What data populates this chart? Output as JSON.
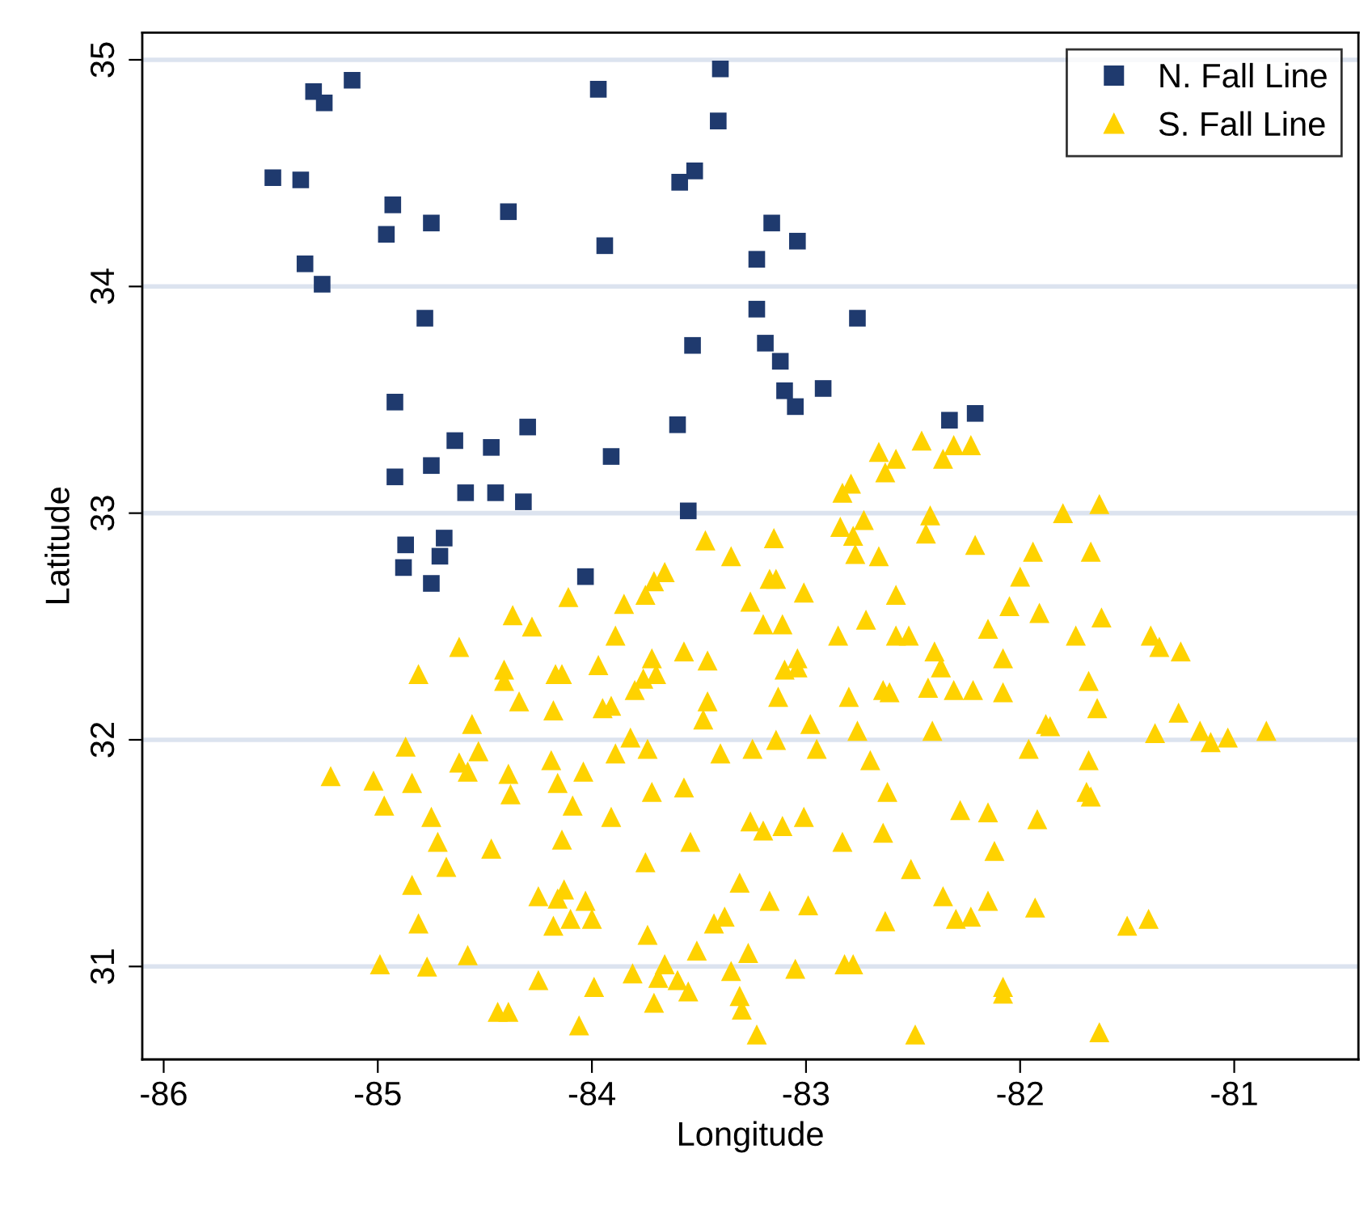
{
  "chart_data": {
    "type": "scatter",
    "xlabel": "Longitude",
    "ylabel": "Latitude",
    "xlim": [
      -86.1,
      -80.42
    ],
    "ylim": [
      30.59,
      35.12
    ],
    "xticks": [
      -86,
      -85,
      -84,
      -83,
      -82,
      -81
    ],
    "yticks": [
      31,
      32,
      33,
      34,
      35
    ],
    "grid": "y",
    "legend": "top right",
    "series": [
      {
        "name": "N. Fall Line",
        "color": "#1f3a6e",
        "marker": "square",
        "x": [
          -83.4,
          -83.97,
          -85.12,
          -85.3,
          -85.25,
          -83.41,
          -85.49,
          -85.36,
          -83.52,
          -83.59,
          -84.93,
          -84.96,
          -84.75,
          -84.39,
          -83.94,
          -83.23,
          -85.34,
          -85.26,
          -84.78,
          -83.53,
          -83.23,
          -84.92,
          -83.6,
          -84.3,
          -84.64,
          -84.47,
          -83.91,
          -84.92,
          -84.75,
          -84.59,
          -84.45,
          -84.32,
          -83.55,
          -84.87,
          -84.69,
          -84.88,
          -84.71,
          -84.75,
          -84.03,
          -83.16,
          -83.04,
          -82.76,
          -83.19,
          -83.12,
          -83.1,
          -83.05,
          -82.92,
          -82.33,
          -82.21
        ],
        "values": [
          34.96,
          34.87,
          34.91,
          34.86,
          34.81,
          34.73,
          34.48,
          34.47,
          34.51,
          34.46,
          34.36,
          34.23,
          34.28,
          34.33,
          34.18,
          34.12,
          34.1,
          34.01,
          33.86,
          33.74,
          33.9,
          33.49,
          33.39,
          33.38,
          33.32,
          33.29,
          33.25,
          33.16,
          33.21,
          33.09,
          33.09,
          33.05,
          33.01,
          32.86,
          32.89,
          32.76,
          32.81,
          32.69,
          32.72,
          34.28,
          34.2,
          33.86,
          33.75,
          33.67,
          33.54,
          33.47,
          33.55,
          33.41,
          33.44
        ]
      },
      {
        "name": "S. Fall Line",
        "color": "#ffd200",
        "marker": "triangle",
        "x": [
          -83.47,
          -83.35,
          -83.66,
          -83.71,
          -83.75,
          -84.11,
          -83.85,
          -84.37,
          -84.28,
          -83.26,
          -83.89,
          -84.62,
          -83.57,
          -83.46,
          -83.72,
          -84.81,
          -84.41,
          -84.41,
          -84.14,
          -84.17,
          -83.97,
          -83.7,
          -83.76,
          -83.8,
          -84.34,
          -84.18,
          -83.95,
          -83.91,
          -83.46,
          -83.48,
          -84.56,
          -83.82,
          -84.87,
          -84.53,
          -84.62,
          -84.58,
          -84.19,
          -83.89,
          -83.74,
          -83.4,
          -83.25,
          -85.22,
          -85.02,
          -84.84,
          -84.39,
          -84.38,
          -84.16,
          -84.04,
          -83.72,
          -83.57,
          -84.97,
          -84.75,
          -84.09,
          -83.91,
          -83.26,
          -84.72,
          -84.47,
          -84.14,
          -83.54,
          -84.68,
          -83.75,
          -84.84,
          -83.31,
          -84.25,
          -84.13,
          -84.16,
          -84.03,
          -84.18,
          -84.1,
          -84.0,
          -84.81,
          -83.74,
          -83.43,
          -83.38,
          -83.51,
          -84.99,
          -84.77,
          -84.58,
          -83.81,
          -83.66,
          -83.69,
          -83.6,
          -83.55,
          -83.35,
          -83.27,
          -84.25,
          -83.99,
          -83.71,
          -83.31,
          -83.3,
          -84.44,
          -84.39,
          -84.06,
          -83.23,
          -82.46,
          -82.66,
          -82.58,
          -82.31,
          -82.23,
          -82.36,
          -82.63,
          -82.79,
          -82.83,
          -81.63,
          -81.8,
          -82.42,
          -82.73,
          -82.84,
          -82.78,
          -82.44,
          -82.77,
          -82.66,
          -82.21,
          -81.94,
          -81.67,
          -83.15,
          -82.0,
          -83.17,
          -83.14,
          -83.01,
          -82.58,
          -82.05,
          -81.91,
          -81.62,
          -82.72,
          -83.2,
          -83.11,
          -82.85,
          -82.58,
          -82.52,
          -82.15,
          -81.74,
          -81.39,
          -81.35,
          -81.25,
          -82.4,
          -82.37,
          -82.08,
          -83.04,
          -83.04,
          -83.1,
          -81.68,
          -83.13,
          -82.8,
          -82.64,
          -82.61,
          -82.43,
          -82.31,
          -82.22,
          -82.08,
          -81.64,
          -81.26,
          -82.98,
          -82.76,
          -82.41,
          -81.88,
          -81.86,
          -81.37,
          -81.16,
          -81.11,
          -81.03,
          -80.85,
          -83.14,
          -82.95,
          -82.7,
          -81.96,
          -81.68,
          -82.62,
          -81.69,
          -81.67,
          -82.28,
          -82.15,
          -81.92,
          -83.2,
          -83.11,
          -83.01,
          -82.83,
          -82.64,
          -82.12,
          -82.51,
          -83.17,
          -82.99,
          -82.36,
          -82.15,
          -81.93,
          -82.63,
          -82.3,
          -82.23,
          -81.5,
          -81.4,
          -83.05,
          -82.82,
          -82.78,
          -82.08,
          -82.08,
          -82.49,
          -81.63
        ],
        "values": [
          32.88,
          32.81,
          32.74,
          32.7,
          32.64,
          32.63,
          32.6,
          32.55,
          32.5,
          32.61,
          32.46,
          32.41,
          32.39,
          32.35,
          32.36,
          32.29,
          32.31,
          32.26,
          32.29,
          32.29,
          32.33,
          32.29,
          32.27,
          32.22,
          32.17,
          32.13,
          32.14,
          32.15,
          32.17,
          32.09,
          32.07,
          32.01,
          31.97,
          31.95,
          31.9,
          31.86,
          31.91,
          31.94,
          31.96,
          31.94,
          31.96,
          31.84,
          31.82,
          31.81,
          31.85,
          31.76,
          31.81,
          31.86,
          31.77,
          31.79,
          31.71,
          31.66,
          31.71,
          31.66,
          31.64,
          31.55,
          31.52,
          31.56,
          31.55,
          31.44,
          31.46,
          31.36,
          31.37,
          31.31,
          31.34,
          31.3,
          31.29,
          31.18,
          31.21,
          31.21,
          31.19,
          31.14,
          31.19,
          31.22,
          31.07,
          31.01,
          31.0,
          31.05,
          30.97,
          31.01,
          30.95,
          30.94,
          30.89,
          30.98,
          31.06,
          30.94,
          30.91,
          30.84,
          30.87,
          30.81,
          30.8,
          30.8,
          30.74,
          30.7,
          33.32,
          33.27,
          33.24,
          33.3,
          33.3,
          33.24,
          33.18,
          33.13,
          33.09,
          33.04,
          33.0,
          32.99,
          32.97,
          32.94,
          32.9,
          32.91,
          32.82,
          32.81,
          32.86,
          32.83,
          32.83,
          32.89,
          32.72,
          32.71,
          32.71,
          32.65,
          32.64,
          32.59,
          32.56,
          32.54,
          32.53,
          32.51,
          32.51,
          32.46,
          32.46,
          32.46,
          32.49,
          32.46,
          32.46,
          32.41,
          32.39,
          32.39,
          32.32,
          32.36,
          32.36,
          32.32,
          32.31,
          32.26,
          32.19,
          32.19,
          32.22,
          32.21,
          32.23,
          32.22,
          32.22,
          32.21,
          32.14,
          32.12,
          32.07,
          32.04,
          32.04,
          32.07,
          32.06,
          32.03,
          32.04,
          31.99,
          32.01,
          32.04,
          32.0,
          31.96,
          31.91,
          31.96,
          31.91,
          31.77,
          31.77,
          31.75,
          31.69,
          31.68,
          31.65,
          31.6,
          31.62,
          31.66,
          31.55,
          31.59,
          31.51,
          31.43,
          31.29,
          31.27,
          31.31,
          31.29,
          31.26,
          31.2,
          31.21,
          31.22,
          31.18,
          31.21,
          30.99,
          31.01,
          31.01,
          30.91,
          30.88,
          30.7,
          30.71
        ]
      }
    ]
  }
}
